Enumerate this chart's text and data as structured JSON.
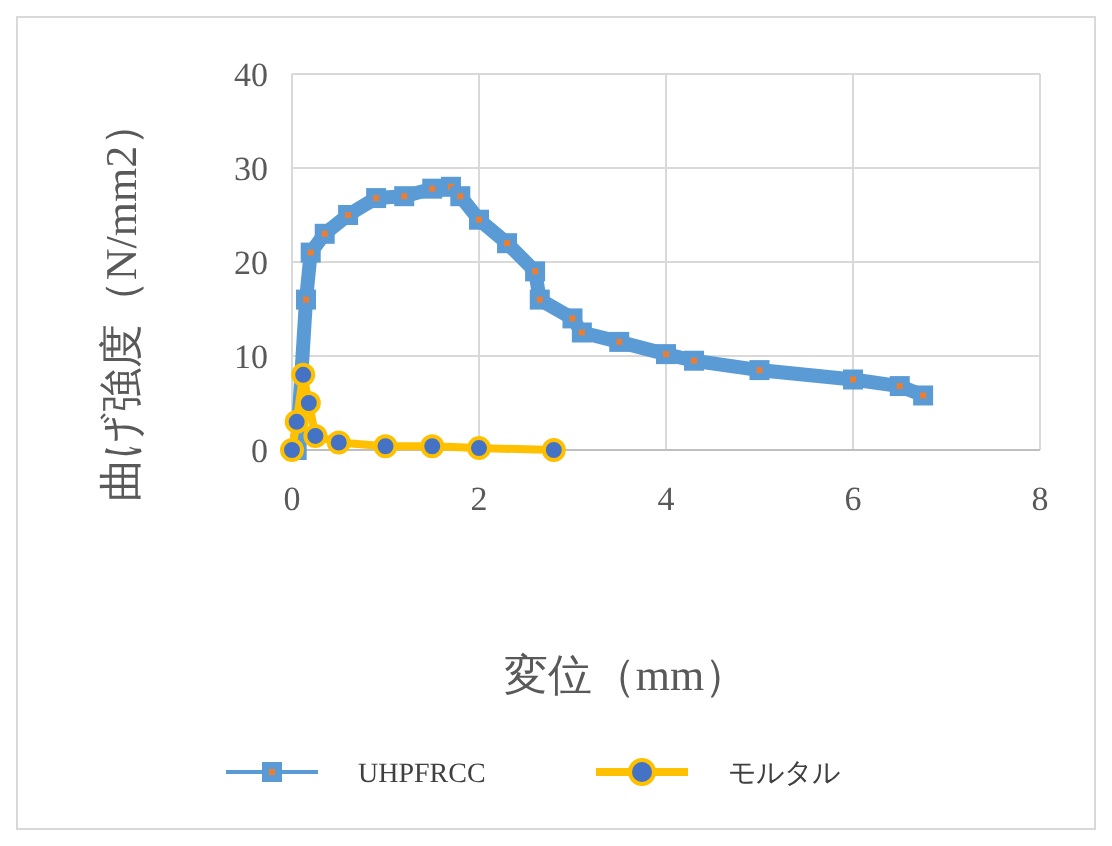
{
  "chart_data": {
    "type": "line",
    "xlabel": "変位（mm）",
    "ylabel": "曲げ強度（N/mm2）",
    "xlim": [
      0,
      8
    ],
    "ylim": [
      0,
      40
    ],
    "xticks": [
      0,
      2,
      4,
      6,
      8
    ],
    "yticks": [
      0,
      10,
      20,
      30,
      40
    ],
    "grid": true,
    "legend": "bottom",
    "series": [
      {
        "name": "UHPFRCC",
        "color": "#5b9bd5",
        "marker": "square",
        "x": [
          0.05,
          0.15,
          0.2,
          0.35,
          0.6,
          0.9,
          1.2,
          1.5,
          1.7,
          1.8,
          2.0,
          2.3,
          2.6,
          2.65,
          3.0,
          3.1,
          3.5,
          4.0,
          4.3,
          5.0,
          6.0,
          6.5,
          6.75
        ],
        "values": [
          0,
          16,
          21,
          23,
          25,
          26.8,
          27,
          27.8,
          28,
          27,
          24.5,
          22,
          19,
          16,
          14,
          12.5,
          11.5,
          10.2,
          9.5,
          8.5,
          7.5,
          6.8,
          5.8
        ]
      },
      {
        "name": "モルタル",
        "color": "#ffc000",
        "marker": "circle",
        "x": [
          0,
          0.05,
          0.12,
          0.18,
          0.25,
          0.5,
          1,
          1.5,
          2,
          2.8
        ],
        "values": [
          0,
          3,
          8,
          5,
          1.5,
          0.8,
          0.4,
          0.4,
          0.2,
          0
        ]
      }
    ]
  }
}
